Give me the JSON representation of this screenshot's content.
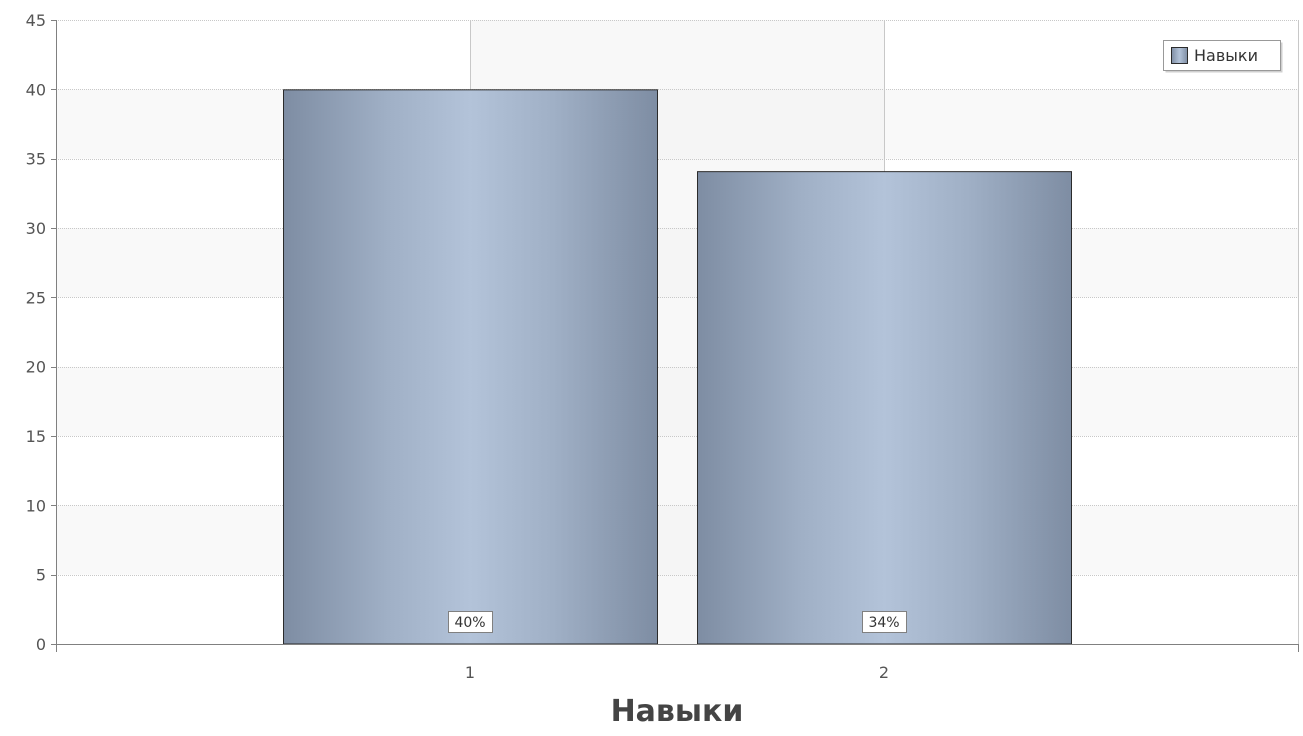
{
  "chart_data": {
    "type": "bar",
    "categories": [
      "1",
      "2"
    ],
    "series": [
      {
        "name": "Навыки",
        "values": [
          40,
          34.1
        ],
        "data_labels": [
          "40%",
          "34%"
        ]
      }
    ],
    "title": "",
    "xlabel": "Навыки",
    "ylabel": "",
    "ylim": [
      0,
      45
    ],
    "yticks": [
      0,
      5,
      10,
      15,
      20,
      25,
      30,
      35,
      40,
      45
    ],
    "ytick_labels": [
      "0",
      "5",
      "10",
      "15",
      "20",
      "25",
      "30",
      "35",
      "40",
      "45"
    ],
    "grid": true,
    "legend": {
      "position": "top-right",
      "entries": [
        "Навыки"
      ]
    },
    "colors": {
      "bar_edge": "#7e8da3",
      "bar_center": "#b3c3d9",
      "bar_stroke": "#2b2b2b",
      "plot_band_a": "#f9f9f9",
      "plot_band_b": "#ffffff",
      "plot_column_shade": "#f3f3f3",
      "grid": "#c8c8c8",
      "axis": "#808080"
    }
  }
}
